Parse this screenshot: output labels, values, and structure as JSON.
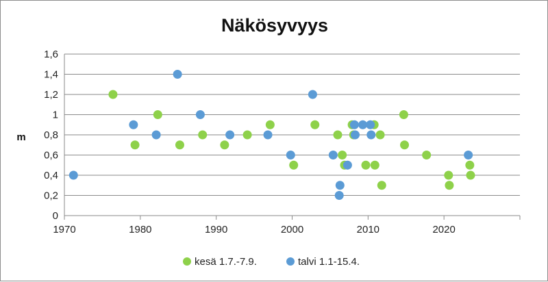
{
  "chart_data": {
    "type": "scatter",
    "title": "Näkösyvyys",
    "xlabel": "",
    "ylabel": "m",
    "xlim": [
      1970,
      2030
    ],
    "ylim": [
      0,
      1.6
    ],
    "x_ticks": [
      "1970",
      "1980",
      "1990",
      "2000",
      "2010",
      "2020"
    ],
    "y_ticks": [
      "0",
      "0,2",
      "0,4",
      "0,6",
      "0,8",
      "1",
      "1,2",
      "1,4",
      "1,6"
    ],
    "grid": "horizontal",
    "legend_position": "bottom",
    "colors": {
      "kesa": "#8ed14a",
      "talvi": "#5b9bd5"
    },
    "series": [
      {
        "name": "kesä 1.7.-7.9.",
        "x": [
          1976.4,
          1979.3,
          1982.3,
          1985.2,
          1988.2,
          1991.1,
          1994.1,
          1997.1,
          2000.2,
          2003.0,
          2006.0,
          2006.6,
          2006.9,
          2007.9,
          2008.1,
          2009.7,
          2010.8,
          2010.9,
          2011.6,
          2011.8,
          2014.7,
          2014.8,
          2017.7,
          2020.6,
          2020.7,
          2023.4,
          2023.5
        ],
        "y": [
          1.2,
          0.7,
          1.0,
          0.7,
          0.8,
          0.7,
          0.8,
          0.9,
          0.5,
          0.9,
          0.8,
          0.6,
          0.5,
          0.9,
          0.8,
          0.5,
          0.9,
          0.5,
          0.8,
          0.3,
          1.0,
          0.7,
          0.6,
          0.4,
          0.3,
          0.5,
          0.4
        ]
      },
      {
        "name": "talvi 1.1-15.4.",
        "x": [
          1971.2,
          1979.1,
          1982.1,
          1984.9,
          1987.9,
          1991.8,
          1996.8,
          1999.8,
          2002.7,
          2005.4,
          2006.2,
          2006.3,
          2007.3,
          2008.2,
          2008.3,
          2009.3,
          2010.3,
          2010.4,
          2023.2
        ],
        "y": [
          0.4,
          0.9,
          0.8,
          1.4,
          1.0,
          0.8,
          0.8,
          0.6,
          1.2,
          0.6,
          0.2,
          0.3,
          0.5,
          0.9,
          0.8,
          0.9,
          0.9,
          0.8,
          0.6
        ]
      }
    ]
  }
}
